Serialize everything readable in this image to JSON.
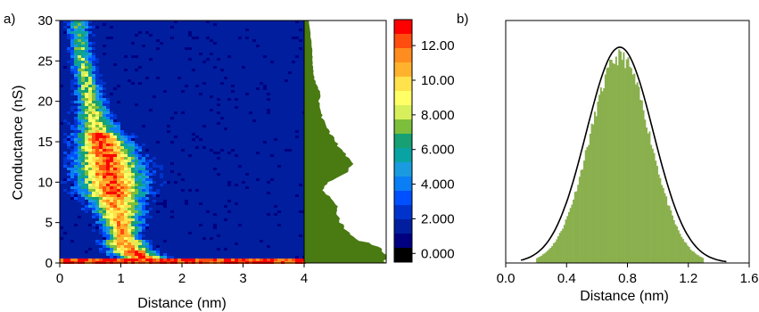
{
  "chart_data": [
    {
      "panel_label": "a)",
      "type": "heatmap",
      "xlabel": "Distance (nm)",
      "ylabel": "Conductance (nS)",
      "xlim": [
        0,
        4
      ],
      "ylim": [
        0,
        30
      ],
      "x_ticks": [
        "0",
        "1",
        "2",
        "3",
        "4"
      ],
      "y_ticks": [
        "0",
        "5",
        "10",
        "15",
        "20",
        "25",
        "30"
      ],
      "colorbar": {
        "tick_labels": [
          "0.000",
          "2.000",
          "4.000",
          "6.000",
          "8.000",
          "10.00",
          "12.00"
        ],
        "tick_values": [
          0,
          2,
          4,
          6,
          8,
          10,
          12
        ],
        "range": [
          -0.5,
          13.5
        ],
        "colors": [
          "#ff0000",
          "#ff4c0f",
          "#ff8c1e",
          "#ffb22d",
          "#ffe24c",
          "#ffff66",
          "#d7ef5a",
          "#7dbf3c",
          "#17a073",
          "#0aa3a3",
          "#1a9be0",
          "#0a7ff5",
          "#0050ff",
          "#0033cc",
          "#001e9e",
          "#000080",
          "#000000"
        ]
      },
      "ridge": {
        "conductance": [
          0,
          1,
          2,
          3,
          5,
          8,
          10,
          12,
          15,
          18,
          22,
          26,
          30
        ],
        "distance": [
          1.6,
          1.25,
          1.1,
          1.05,
          1.0,
          0.9,
          0.85,
          0.8,
          0.7,
          0.55,
          0.45,
          0.35,
          0.3
        ]
      },
      "marginal_histogram": {
        "color": "#4a7a12",
        "conductance": [
          0,
          0.5,
          1,
          1.5,
          2,
          2.5,
          3,
          4,
          5,
          6,
          7,
          8,
          9,
          10,
          11,
          12,
          13,
          14,
          15,
          16,
          17,
          18,
          19,
          20,
          21,
          22,
          23,
          24,
          25,
          26,
          27,
          28,
          29,
          29.7
        ],
        "relative_count": [
          1.0,
          1.0,
          1.0,
          0.95,
          0.88,
          0.75,
          0.62,
          0.5,
          0.45,
          0.42,
          0.4,
          0.33,
          0.22,
          0.3,
          0.48,
          0.6,
          0.52,
          0.45,
          0.38,
          0.32,
          0.28,
          0.22,
          0.2,
          0.18,
          0.2,
          0.15,
          0.12,
          0.11,
          0.1,
          0.1,
          0.09,
          0.08,
          0.07,
          0.06
        ]
      }
    },
    {
      "panel_label": "b)",
      "type": "histogram",
      "xlabel": "Distance (nm)",
      "xlim": [
        0,
        1.6
      ],
      "x_ticks": [
        "0.0",
        "0.4",
        "0.8",
        "1.2",
        "1.6"
      ],
      "bar_color": "#8ab04e",
      "fit_color": "#000000",
      "fit": {
        "kind": "gaussian",
        "center": 0.75,
        "width": 0.22,
        "peak": 0.89
      },
      "histogram": {
        "bin_width": 0.01,
        "start": 0.2,
        "end": 1.3,
        "amplitude": 0.85,
        "center": 0.75,
        "width": 0.2
      }
    }
  ]
}
